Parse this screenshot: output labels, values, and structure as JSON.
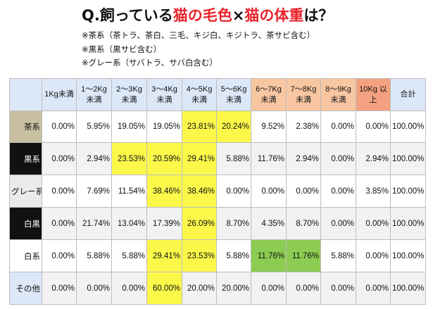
{
  "header": {
    "title_prefix": "Q.飼っている",
    "title_hl1": "猫の毛色",
    "title_times": "×",
    "title_hl2": "猫の体重",
    "title_suffix": "は？",
    "note1": "※茶系（茶トラ、茶白、三毛、キジ白、キジトラ、茶サビ含む）",
    "note2": "※黒系（黒サビ含む）",
    "note3": "※グレー系（サバトラ、サバ白含む）"
  },
  "columns": [
    {
      "label": "1Kg未満",
      "tone": "blue"
    },
    {
      "label": "1～2Kg 未満",
      "tone": "blue"
    },
    {
      "label": "2～3Kg 未満",
      "tone": "blue"
    },
    {
      "label": "3～4Kg 未満",
      "tone": "blue"
    },
    {
      "label": "4～5Kg 未満",
      "tone": "blue"
    },
    {
      "label": "5～6Kg 未満",
      "tone": "blue"
    },
    {
      "label": "6～7Kg 未満",
      "tone": "orange"
    },
    {
      "label": "7～8Kg 未満",
      "tone": "orange"
    },
    {
      "label": "8～9Kg 未満",
      "tone": "orange"
    },
    {
      "label": "10Kg 以上",
      "tone": "red"
    },
    {
      "label": "合計",
      "tone": "blue"
    }
  ],
  "rows": [
    {
      "label": "茶系",
      "style": "tea",
      "values": [
        "0.00%",
        "5.95%",
        "19.05%",
        "19.05%",
        "23.81%",
        "20.24%",
        "9.52%",
        "2.38%",
        "0.00%",
        "0.00%",
        "100.00%"
      ],
      "highlights": {
        "4": "yellow",
        "5": "yellow"
      }
    },
    {
      "label": "黒系",
      "style": "black",
      "values": [
        "0.00%",
        "2.94%",
        "23.53%",
        "20.59%",
        "29.41%",
        "5.88%",
        "11.76%",
        "2.94%",
        "0.00%",
        "2.94%",
        "100.00%"
      ],
      "highlights": {
        "2": "yellow",
        "3": "yellow",
        "4": "yellow"
      }
    },
    {
      "label": "グレー系",
      "style": "gray",
      "values": [
        "0.00%",
        "7.69%",
        "11.54%",
        "38.46%",
        "38.46%",
        "0.00%",
        "0.00%",
        "0.00%",
        "0.00%",
        "3.85%",
        "100.00%"
      ],
      "highlights": {
        "3": "yellow",
        "4": "yellow"
      }
    },
    {
      "label": "白黒",
      "style": "whiteblack",
      "values": [
        "0.00%",
        "21.74%",
        "13.04%",
        "17.39%",
        "26.09%",
        "8.70%",
        "4.35%",
        "8.70%",
        "0.00%",
        "0.00%",
        "100.00%"
      ],
      "highlights": {
        "4": "yellow"
      }
    },
    {
      "label": "白系",
      "style": "white",
      "values": [
        "0.00%",
        "5.88%",
        "5.88%",
        "29.41%",
        "23.53%",
        "5.88%",
        "11.76%",
        "11.76%",
        "5.88%",
        "0.00%",
        "100.00%"
      ],
      "highlights": {
        "3": "yellow",
        "4": "yellow",
        "6": "green",
        "7": "green"
      }
    },
    {
      "label": "その他",
      "style": "other",
      "values": [
        "0.00%",
        "0.00%",
        "0.00%",
        "60.00%",
        "20.00%",
        "20.00%",
        "0.00%",
        "0.00%",
        "0.00%",
        "0.00%",
        "100.00%"
      ],
      "highlights": {
        "3": "yellow"
      }
    }
  ],
  "colors": {
    "title_highlight": "#e8232a",
    "highlight_yellow": "#fbf84a",
    "highlight_green": "#8dcc52"
  }
}
